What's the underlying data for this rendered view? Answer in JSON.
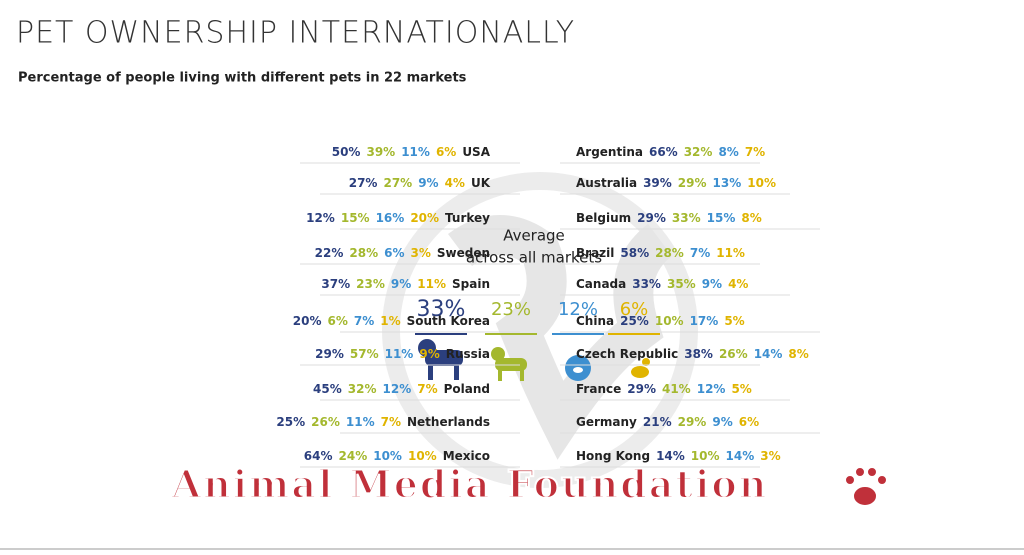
{
  "header": {
    "title": "PET OWNERSHIP INTERNATIONALLY",
    "subtitle": "Percentage of people living with different pets in 22 markets"
  },
  "average": {
    "title": "Average",
    "subtitle": "across all markets",
    "values": [
      "33%",
      "23%",
      "12%",
      "6%"
    ]
  },
  "left": [
    {
      "name": "USA",
      "values": [
        "50%",
        "39%",
        "11%",
        "6%"
      ]
    },
    {
      "name": "UK",
      "values": [
        "27%",
        "27%",
        "9%",
        "4%"
      ]
    },
    {
      "name": "Turkey",
      "values": [
        "12%",
        "15%",
        "16%",
        "20%"
      ]
    },
    {
      "name": "Sweden",
      "values": [
        "22%",
        "28%",
        "6%",
        "3%"
      ]
    },
    {
      "name": "Spain",
      "values": [
        "37%",
        "23%",
        "9%",
        "11%"
      ]
    },
    {
      "name": "South Korea",
      "values": [
        "20%",
        "6%",
        "7%",
        "1%"
      ]
    },
    {
      "name": "Russia",
      "values": [
        "29%",
        "57%",
        "11%",
        "9%"
      ]
    },
    {
      "name": "Poland",
      "values": [
        "45%",
        "32%",
        "12%",
        "7%"
      ]
    },
    {
      "name": "Netherlands",
      "values": [
        "25%",
        "26%",
        "11%",
        "7%"
      ]
    },
    {
      "name": "Mexico",
      "values": [
        "64%",
        "24%",
        "10%",
        "10%"
      ]
    }
  ],
  "right": [
    {
      "name": "Argentina",
      "values": [
        "66%",
        "32%",
        "8%",
        "7%"
      ]
    },
    {
      "name": "Australia",
      "values": [
        "39%",
        "29%",
        "13%",
        "10%"
      ]
    },
    {
      "name": "Belgium",
      "values": [
        "29%",
        "33%",
        "15%",
        "8%"
      ]
    },
    {
      "name": "Brazil",
      "values": [
        "58%",
        "28%",
        "7%",
        "11%"
      ]
    },
    {
      "name": "Canada",
      "values": [
        "33%",
        "35%",
        "9%",
        "4%"
      ]
    },
    {
      "name": "China",
      "values": [
        "25%",
        "10%",
        "17%",
        "5%"
      ]
    },
    {
      "name": "Czech Republic",
      "values": [
        "38%",
        "26%",
        "14%",
        "8%"
      ]
    },
    {
      "name": "France",
      "values": [
        "29%",
        "41%",
        "12%",
        "5%"
      ]
    },
    {
      "name": "Germany",
      "values": [
        "21%",
        "29%",
        "9%",
        "6%"
      ]
    },
    {
      "name": "Hong Kong",
      "values": [
        "14%",
        "10%",
        "14%",
        "3%"
      ]
    }
  ],
  "watermark": "Animal Media Foundation"
}
